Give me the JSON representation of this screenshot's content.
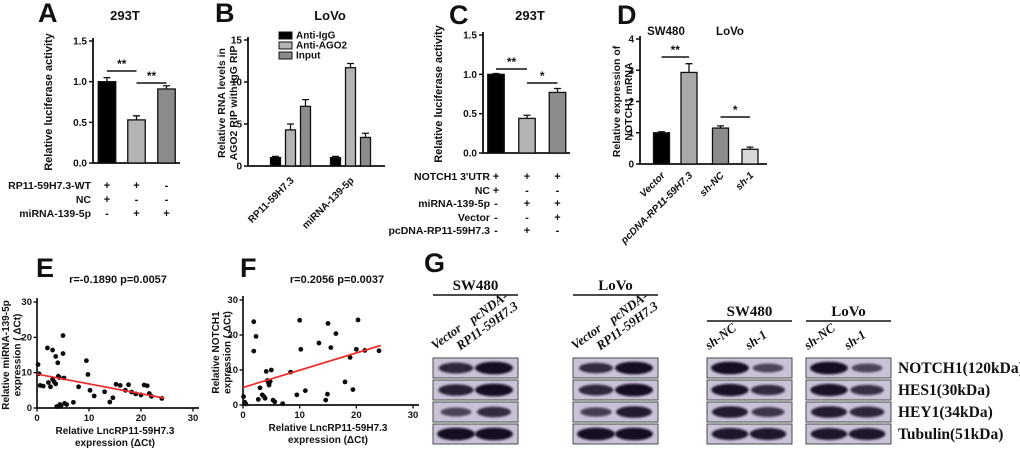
{
  "figure": {
    "letters": {
      "A": "A",
      "B": "B",
      "C": "C",
      "D": "D",
      "E": "E",
      "F": "F",
      "G": "G"
    }
  },
  "chart_data": [
    {
      "panel": "A",
      "type": "bar",
      "title": "293T",
      "ylabel_lines": [
        "Relative luciferase activity"
      ],
      "ylim": [
        0,
        1.5
      ],
      "yticks": [
        0,
        0.5,
        1,
        1.5
      ],
      "values": [
        1.0,
        0.53,
        0.91
      ],
      "errors": [
        0.05,
        0.05,
        0.04
      ],
      "colors": [
        "#000000",
        "#b4b4b4",
        "#8c8c8c"
      ],
      "significance": [
        {
          "between": [
            0,
            1
          ],
          "label": "**"
        },
        {
          "between": [
            1,
            2
          ],
          "label": "**"
        }
      ],
      "condition_rows": [
        {
          "label": "RP11-59H7.3-WT",
          "symbols": [
            "+",
            "+",
            "-"
          ]
        },
        {
          "label": "NC",
          "symbols": [
            "+",
            "-",
            "-"
          ]
        },
        {
          "label": "miRNA-139-5p",
          "symbols": [
            "-",
            "+",
            "+"
          ]
        }
      ]
    },
    {
      "panel": "B",
      "type": "grouped_bar",
      "title": "LoVo",
      "ylabel_lines": [
        "Relative RNA levels in",
        "AGO2 RIP with IgG RIP"
      ],
      "ylim": [
        0,
        15
      ],
      "yticks": [
        0,
        5,
        10,
        15
      ],
      "categories": [
        "RP11-59H7.3",
        "miRNA-139-5p"
      ],
      "series": [
        {
          "name": "Anti-IgG",
          "color": "#000000",
          "values": [
            1.0,
            1.0
          ],
          "errors": [
            0.15,
            0.15
          ]
        },
        {
          "name": "Anti-AGO2",
          "color": "#b4b4b4",
          "values": [
            4.3,
            11.7
          ],
          "errors": [
            0.7,
            0.5
          ]
        },
        {
          "name": "Input",
          "color": "#8c8c8c",
          "values": [
            7.1,
            3.4
          ],
          "errors": [
            0.8,
            0.5
          ]
        }
      ]
    },
    {
      "panel": "C",
      "type": "bar",
      "title": "293T",
      "ylabel_lines": [
        "Relative luciferase activity"
      ],
      "ylim": [
        0,
        1.5
      ],
      "yticks": [
        0,
        0.5,
        1,
        1.5
      ],
      "values": [
        1.0,
        0.44,
        0.77
      ],
      "errors": [
        0.01,
        0.04,
        0.05
      ],
      "colors": [
        "#000000",
        "#b4b4b4",
        "#8c8c8c"
      ],
      "significance": [
        {
          "between": [
            0,
            1
          ],
          "label": "**"
        },
        {
          "between": [
            1,
            2
          ],
          "label": "*"
        }
      ],
      "condition_rows": [
        {
          "label": "NOTCH1 3'UTR",
          "symbols": [
            "+",
            "+",
            "+"
          ]
        },
        {
          "label": "NC",
          "symbols": [
            "+",
            "-",
            "-"
          ]
        },
        {
          "label": "miRNA-139-5p",
          "symbols": [
            "-",
            "+",
            "+"
          ]
        },
        {
          "label": "Vector",
          "symbols": [
            "-",
            "-",
            "+"
          ]
        },
        {
          "label": "pcDNA-RP11-59H7.3",
          "symbols": [
            "-",
            "+",
            "-"
          ]
        }
      ]
    },
    {
      "panel": "D",
      "type": "bar",
      "title": null,
      "cell_line_labels": [
        "SW480",
        "LoVo"
      ],
      "ylabel_lines": [
        "Relative expression of",
        "NOTCH1 mRNA"
      ],
      "ylim": [
        0,
        4
      ],
      "yticks": [
        0,
        1,
        2,
        3,
        4
      ],
      "categories": [
        "Vector",
        "pcDNA-RP11-59H7.3",
        "sh-NC",
        "sh-1"
      ],
      "values": [
        1.0,
        2.93,
        1.15,
        0.47
      ],
      "errors": [
        0.03,
        0.28,
        0.07,
        0.07
      ],
      "colors": [
        "#000000",
        "#a9a9a9",
        "#8c8c8c",
        "#d8d8d8"
      ],
      "significance": [
        {
          "between": [
            0,
            1
          ],
          "label": "**"
        },
        {
          "between": [
            2,
            3
          ],
          "label": "*"
        }
      ]
    },
    {
      "panel": "E",
      "type": "scatter",
      "title": "r=-0.1890 p=0.0057",
      "xlabel_lines": [
        "Relative LncRP11-59H7.3",
        "expression (ΔCt)"
      ],
      "ylabel_lines": [
        "Relative miRNA-139-5p",
        "expression ( ΔCt)"
      ],
      "xlim": [
        0,
        30
      ],
      "ylim": [
        0,
        30
      ],
      "xticks": [
        0,
        10,
        20,
        30
      ],
      "yticks": [
        0,
        10,
        20,
        30
      ],
      "point_color": "#0b0b0b",
      "line_color": "#ee2b2b",
      "trend_line": {
        "x1": 0,
        "y1": 9.6,
        "x2": 24.5,
        "y2": 2.8
      },
      "points": [
        [
          0.2,
          12.3
        ],
        [
          0.4,
          9.7
        ],
        [
          0.6,
          6.4
        ],
        [
          1.2,
          6.2
        ],
        [
          2,
          17
        ],
        [
          2.2,
          7.2
        ],
        [
          2.6,
          6
        ],
        [
          3,
          16.4
        ],
        [
          3,
          8.1
        ],
        [
          3.3,
          7.4
        ],
        [
          3.6,
          14.6
        ],
        [
          3.6,
          6.8
        ],
        [
          3.8,
          0.4
        ],
        [
          4,
          12.8
        ],
        [
          4.1,
          9
        ],
        [
          4.3,
          8.6
        ],
        [
          4.4,
          1
        ],
        [
          4.6,
          0.6
        ],
        [
          5,
          20.5
        ],
        [
          5,
          15.4
        ],
        [
          5.2,
          8.5
        ],
        [
          5.3,
          1.3
        ],
        [
          5.7,
          1
        ],
        [
          7,
          1.6
        ],
        [
          8,
          6
        ],
        [
          9.5,
          13.4
        ],
        [
          9.8,
          9.5
        ],
        [
          10.2,
          5
        ],
        [
          11,
          3.4
        ],
        [
          13,
          4.6
        ],
        [
          14,
          1.7
        ],
        [
          14.6,
          2.9
        ],
        [
          15.2,
          6.7
        ],
        [
          16,
          6.4
        ],
        [
          17,
          5
        ],
        [
          17.6,
          6.6
        ],
        [
          18.2,
          4.5
        ],
        [
          19,
          4
        ],
        [
          20,
          3.7
        ],
        [
          20.6,
          6.5
        ],
        [
          21.2,
          6.3
        ],
        [
          21.6,
          4.1
        ],
        [
          22,
          3.3
        ],
        [
          24,
          2.7
        ]
      ]
    },
    {
      "panel": "F",
      "type": "scatter",
      "title": "r=0.2056 p=0.0037",
      "xlabel_lines": [
        "Relative LncRP11-59H7.3",
        "expression (ΔCt)"
      ],
      "ylabel_lines": [
        "Relative NOTCH1",
        "expression ( ΔCt)"
      ],
      "xlim": [
        0,
        30
      ],
      "ylim": [
        0,
        30
      ],
      "xticks": [
        0,
        10,
        20,
        30
      ],
      "yticks": [
        0,
        10,
        20,
        30
      ],
      "point_color": "#0b0b0b",
      "line_color": "#ee2b2b",
      "trend_line": {
        "x1": 0,
        "y1": 5.0,
        "x2": 24.3,
        "y2": 17.0
      },
      "points": [
        [
          0.1,
          2.4
        ],
        [
          0.3,
          0.8
        ],
        [
          0.5,
          0.3
        ],
        [
          1.9,
          23.8
        ],
        [
          2.3,
          19.6
        ],
        [
          1.9,
          15.4
        ],
        [
          2.7,
          1.6
        ],
        [
          3,
          4.9
        ],
        [
          3.4,
          2.9
        ],
        [
          3.7,
          2.4
        ],
        [
          3.9,
          1.9
        ],
        [
          4.1,
          9.6
        ],
        [
          4.3,
          7
        ],
        [
          4.5,
          6.4
        ],
        [
          4.6,
          5.7
        ],
        [
          4.8,
          6.7
        ],
        [
          5,
          10
        ],
        [
          5.3,
          1.4
        ],
        [
          5.6,
          0.9
        ],
        [
          7,
          0.4
        ],
        [
          8.4,
          9.4
        ],
        [
          9.5,
          2.9
        ],
        [
          10,
          24.2
        ],
        [
          10.2,
          15.9
        ],
        [
          11,
          4.1
        ],
        [
          13.4,
          17.7
        ],
        [
          14.6,
          1.4
        ],
        [
          14.9,
          3.1
        ],
        [
          15,
          23.3
        ],
        [
          15.5,
          16.4
        ],
        [
          16.4,
          20.4
        ],
        [
          18,
          6.6
        ],
        [
          18.9,
          13.6
        ],
        [
          19.4,
          4.4
        ],
        [
          20,
          15.9
        ],
        [
          20.3,
          24.3
        ],
        [
          21.5,
          15.6
        ],
        [
          24,
          15.5
        ]
      ]
    }
  ],
  "western_blot": {
    "groups": [
      {
        "cell_line": "SW480",
        "lanes": [
          [
            "Vector"
          ],
          [
            "pcNDA-",
            "RP11-59H7.3"
          ]
        ],
        "bands": [
          [
            0.75,
            1
          ],
          [
            0.8,
            1
          ],
          [
            0.45,
            0.7
          ],
          [
            1,
            1
          ]
        ]
      },
      {
        "cell_line": "LoVo",
        "lanes": [
          [
            "Vector"
          ],
          [
            "pcNDA-",
            "RP11-59H7.3"
          ]
        ],
        "bands": [
          [
            0.7,
            1
          ],
          [
            0.75,
            1
          ],
          [
            0.5,
            0.85
          ],
          [
            1,
            1
          ]
        ]
      },
      {
        "cell_line": "SW480",
        "lanes": [
          [
            "sh-NC"
          ],
          [
            "sh-1"
          ]
        ],
        "bands": [
          [
            1,
            0.45
          ],
          [
            0.95,
            0.7
          ],
          [
            0.85,
            0.6
          ],
          [
            0.9,
            0.9
          ]
        ]
      },
      {
        "cell_line": "LoVo",
        "lanes": [
          [
            "sh-NC"
          ],
          [
            "sh-1"
          ]
        ],
        "bands": [
          [
            1,
            0.45
          ],
          [
            0.95,
            0.65
          ],
          [
            0.85,
            0.75
          ],
          [
            0.9,
            0.9
          ]
        ]
      }
    ],
    "protein_labels": [
      "NOTCH1(120kDa)",
      "HES1(30kDa)",
      "HEY1(34kDa)",
      "Tubulin(51kDa)"
    ],
    "membrane_color": "#cac3d7",
    "band_color": "#160e24"
  }
}
